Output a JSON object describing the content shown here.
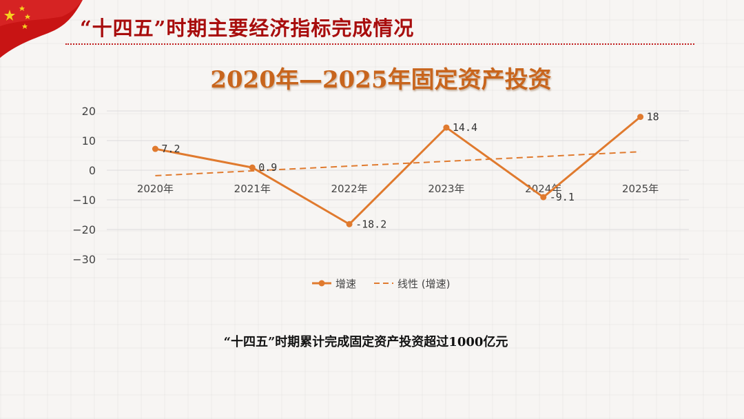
{
  "header": {
    "title": "“十四五”时期主要经济指标完成情况"
  },
  "footer": {
    "text": "“十四五”时期累计完成固定资产投资超过1000亿元"
  },
  "colors": {
    "accent": "#e07a2e",
    "header": "#a80d0d",
    "title": "#c8651d",
    "flag": "#c81414"
  },
  "chart_data": {
    "type": "line",
    "title": "2020年—2025年固定资产投资",
    "categories": [
      "2020年",
      "2021年",
      "2022年",
      "2023年",
      "2024年",
      "2025年"
    ],
    "series": [
      {
        "name": "增速",
        "values": [
          7.2,
          0.9,
          -18.2,
          14.4,
          -9.1,
          18
        ],
        "labels": [
          "7.2",
          "0.9",
          "-18.2",
          "14.4",
          "-9.1",
          "18"
        ]
      }
    ],
    "trendline": {
      "name": "线性 (增速)",
      "style": "dashed"
    },
    "ylim": [
      -30,
      20
    ],
    "yticks": [
      "20",
      "10",
      "0",
      "−10",
      "−20",
      "−30"
    ],
    "grid": true,
    "legend_position": "bottom"
  }
}
